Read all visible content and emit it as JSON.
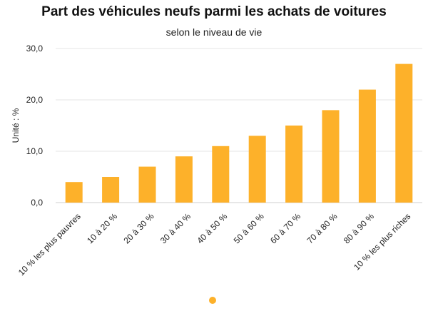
{
  "chart_data": {
    "type": "bar",
    "title": "Part des véhicules neufs parmi les achats de voitures",
    "subtitle": "selon le niveau de vie",
    "ylabel": "Unité : %",
    "xlabel": "",
    "categories": [
      "10 % les plus pauvres",
      "10 à 20 %",
      "20 à 30 %",
      "30 à 40 %",
      "40 à 50 %",
      "50 à 60 %",
      "60 à 70 %",
      "70 à 80 %",
      "80 à 90 %",
      "10 % les plus riches"
    ],
    "values": [
      4,
      5,
      7,
      9,
      11,
      13,
      15,
      18,
      22,
      27
    ],
    "ylim": [
      0,
      30
    ],
    "yticks": [
      "0,0",
      "10,0",
      "20,0",
      "30,0"
    ],
    "grid": true,
    "legend": "bottom-center",
    "series_color": "#FDB12A"
  }
}
